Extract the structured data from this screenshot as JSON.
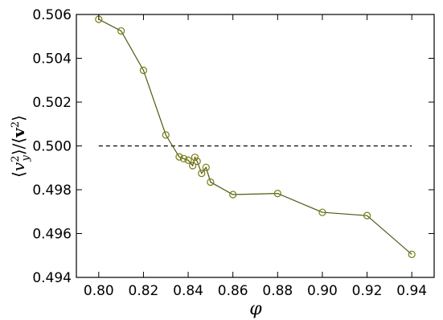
{
  "chart_data": {
    "type": "line",
    "xlabel": "φ",
    "ylabel": "⟨v_y²⟩/⟨v²⟩",
    "xlim": [
      0.79,
      0.95
    ],
    "ylim": [
      0.494,
      0.506
    ],
    "xticks": [
      0.8,
      0.82,
      0.84,
      0.86,
      0.88,
      0.9,
      0.92,
      0.94
    ],
    "yticks": [
      0.494,
      0.496,
      0.498,
      0.5,
      0.502,
      0.504,
      0.506
    ],
    "xtick_labels": [
      "0.80",
      "0.82",
      "0.84",
      "0.86",
      "0.88",
      "0.90",
      "0.92",
      "0.94"
    ],
    "ytick_labels": [
      "0.494",
      "0.496",
      "0.498",
      "0.500",
      "0.502",
      "0.504",
      "0.506"
    ],
    "grid": false,
    "series": [
      {
        "color": "#4a5a12",
        "marker": "open-circle",
        "marker_color": "#7a7a10",
        "points": [
          [
            0.8,
            0.50578
          ],
          [
            0.81,
            0.50525
          ],
          [
            0.82,
            0.50345
          ],
          [
            0.83,
            0.5005
          ],
          [
            0.836,
            0.4995
          ],
          [
            0.838,
            0.49942
          ],
          [
            0.84,
            0.49935
          ],
          [
            0.842,
            0.4991
          ],
          [
            0.843,
            0.49948
          ],
          [
            0.844,
            0.4993
          ],
          [
            0.846,
            0.49875
          ],
          [
            0.848,
            0.49902
          ],
          [
            0.85,
            0.49835
          ],
          [
            0.86,
            0.49778
          ],
          [
            0.88,
            0.49783
          ],
          [
            0.9,
            0.49697
          ],
          [
            0.92,
            0.49682
          ],
          [
            0.94,
            0.49505
          ]
        ]
      }
    ],
    "reference_line": {
      "y": 0.5,
      "x_range": [
        0.8,
        0.94
      ],
      "style": "dashed",
      "color": "#000000"
    }
  }
}
